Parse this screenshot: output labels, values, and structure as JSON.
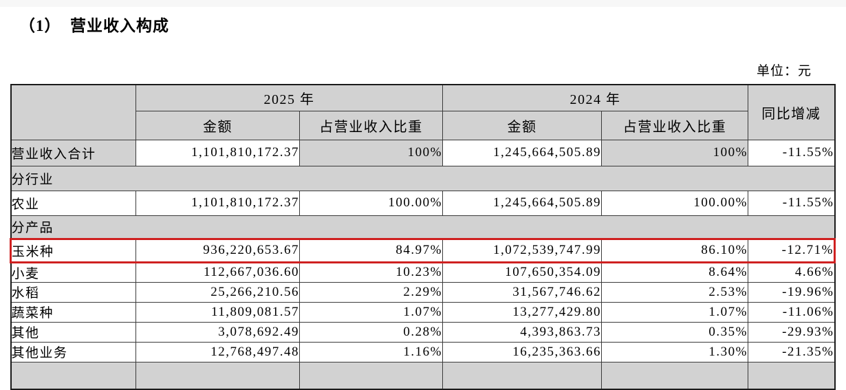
{
  "page": {
    "title": "（1）  营业收入构成",
    "unit_label": "单位：元"
  },
  "colors": {
    "header_bg": "#d2d2d2",
    "highlight_border": "#cf2020",
    "grid_line": "#3a3a3a"
  },
  "table": {
    "header": {
      "year_2025": "2025 年",
      "year_2024": "2024 年",
      "amount_2025": "金额",
      "share_2025": "占营业收入比重",
      "amount_2024": "金额",
      "share_2024": "占营业收入比重",
      "yoy": "同比增减"
    },
    "rows": [
      {
        "type": "data",
        "label": "营业收入合计",
        "a2025": "1,101,810,172.37",
        "s2025": "100%",
        "a2024": "1,245,664,505.89",
        "s2024": "100%",
        "yoy": "-11.55%",
        "shaded": true
      },
      {
        "type": "section",
        "label": "分行业"
      },
      {
        "type": "data",
        "label": "农业",
        "a2025": "1,101,810,172.37",
        "s2025": "100.00%",
        "a2024": "1,245,664,505.89",
        "s2024": "100.00%",
        "yoy": "-11.55%"
      },
      {
        "type": "section",
        "label": "分产品"
      },
      {
        "type": "data",
        "label": "玉米种",
        "a2025": "936,220,653.67",
        "s2025": "84.97%",
        "a2024": "1,072,539,747.99",
        "s2024": "86.10%",
        "yoy": "-12.71%",
        "highlight": true
      },
      {
        "type": "data",
        "label": "小麦",
        "a2025": "112,667,036.60",
        "s2025": "10.23%",
        "a2024": "107,650,354.09",
        "s2024": "8.64%",
        "yoy": "4.66%"
      },
      {
        "type": "data",
        "label": "水稻",
        "a2025": "25,266,210.56",
        "s2025": "2.29%",
        "a2024": "31,567,746.62",
        "s2024": "2.53%",
        "yoy": "-19.96%"
      },
      {
        "type": "data",
        "label": "蔬菜种",
        "a2025": "11,809,081.57",
        "s2025": "1.07%",
        "a2024": "13,277,429.80",
        "s2024": "1.07%",
        "yoy": "-11.06%"
      },
      {
        "type": "data",
        "label": "其他",
        "a2025": "3,078,692.49",
        "s2025": "0.28%",
        "a2024": "4,393,863.73",
        "s2024": "0.35%",
        "yoy": "-29.93%"
      },
      {
        "type": "data",
        "label": "其他业务",
        "a2025": "12,768,497.48",
        "s2025": "1.16%",
        "a2024": "16,235,363.66",
        "s2024": "1.30%",
        "yoy": "-21.35%"
      },
      {
        "type": "partial"
      }
    ]
  }
}
